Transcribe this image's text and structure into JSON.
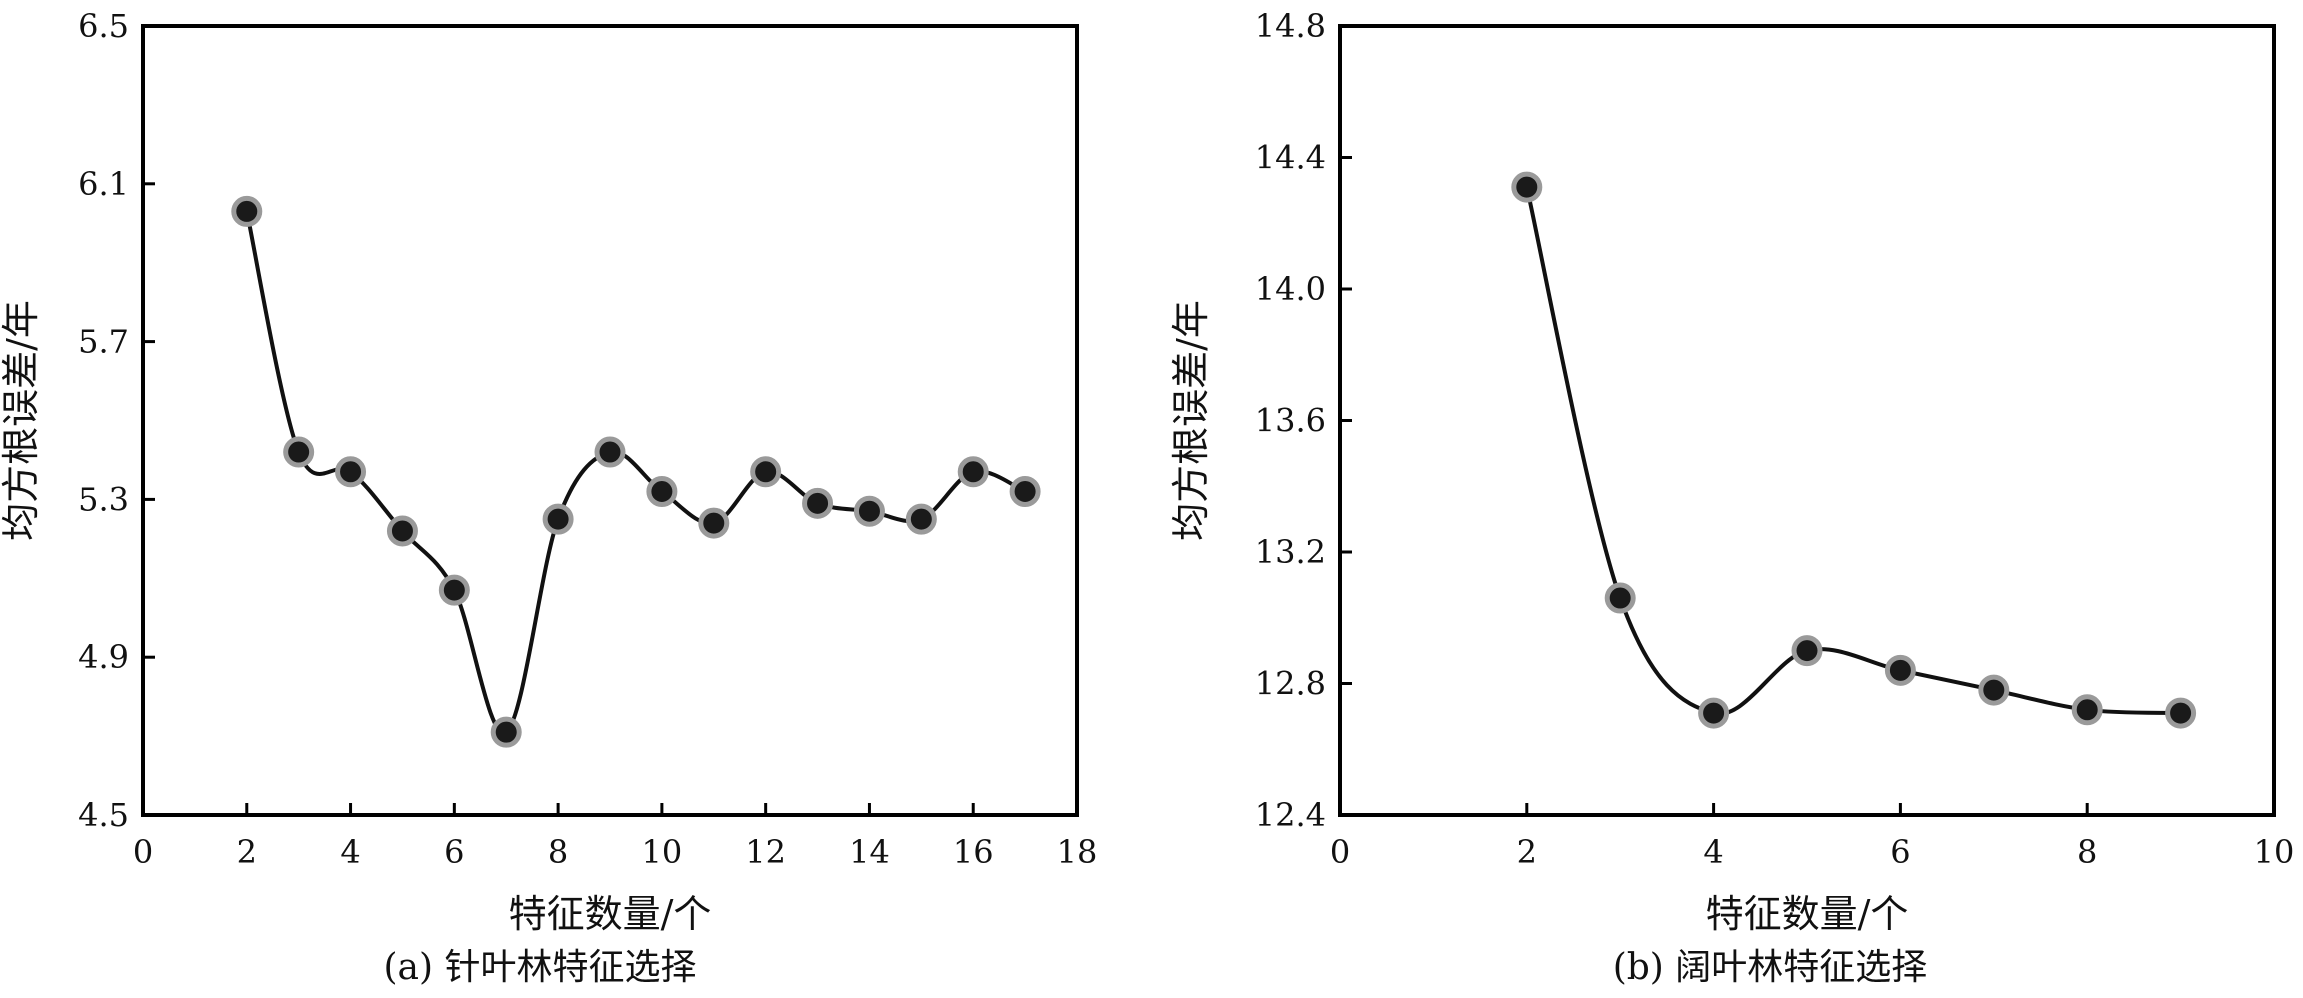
{
  "figure": {
    "captions": [
      "(a) 针叶林特征选择",
      "(b) 阔叶林特征选择"
    ]
  },
  "chart_data": [
    {
      "type": "line",
      "caption": "(a) 针叶林特征选择",
      "xlabel": "特征数量/个",
      "ylabel": "均方根误差/年",
      "xlim": [
        0,
        18
      ],
      "ylim": [
        4.5,
        6.5
      ],
      "xticks": [
        0,
        2,
        4,
        6,
        8,
        10,
        12,
        14,
        16,
        18
      ],
      "yticks": [
        4.5,
        4.9,
        5.3,
        5.7,
        6.1,
        6.5
      ],
      "ytick_labels": [
        "4.5",
        "4.9",
        "5.3",
        "5.7",
        "6.1",
        "6.5"
      ],
      "grid": false,
      "series": [
        {
          "x": [
            2,
            3,
            4,
            5,
            6,
            7,
            8,
            9,
            10,
            11,
            12,
            13,
            14,
            15,
            16,
            17
          ],
          "y": [
            6.03,
            5.42,
            5.37,
            5.22,
            5.07,
            4.71,
            5.25,
            5.42,
            5.32,
            5.24,
            5.37,
            5.29,
            5.27,
            5.25,
            5.37,
            5.32
          ]
        }
      ],
      "colors": {
        "line": "#111111",
        "marker_fill": "#1a1a1a",
        "marker_edge": "#9a9a9a"
      }
    },
    {
      "type": "line",
      "caption": "(b) 阔叶林特征选择",
      "xlabel": "特征数量/个",
      "ylabel": "均方根误差/年",
      "xlim": [
        0,
        10
      ],
      "ylim": [
        12.4,
        14.8
      ],
      "xticks": [
        0,
        2,
        4,
        6,
        8,
        10
      ],
      "yticks": [
        12.4,
        12.8,
        13.2,
        13.6,
        14.0,
        14.4,
        14.8
      ],
      "ytick_labels": [
        "12.4",
        "12.8",
        "13.2",
        "13.6",
        "14.0",
        "14.4",
        "14.8"
      ],
      "grid": false,
      "series": [
        {
          "x": [
            2,
            3,
            4,
            5,
            6,
            7,
            8,
            9
          ],
          "y": [
            14.31,
            13.06,
            12.71,
            12.9,
            12.84,
            12.78,
            12.72,
            12.71
          ]
        }
      ],
      "colors": {
        "line": "#111111",
        "marker_fill": "#1a1a1a",
        "marker_edge": "#9a9a9a"
      }
    }
  ]
}
